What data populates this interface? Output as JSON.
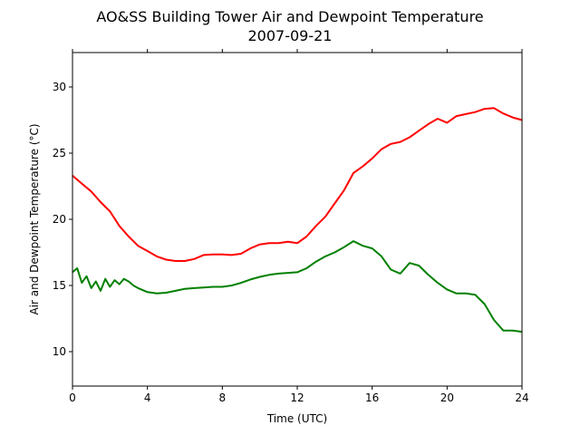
{
  "chart_data": {
    "type": "line",
    "title": "AO&SS Building Tower Air and Dewpoint Temperature",
    "subtitle": "2007-09-21",
    "xlabel": "Time (UTC)",
    "ylabel": "Air and Dewpoint Temperature (°C)",
    "xlim": [
      0,
      24
    ],
    "ylim": [
      7.4,
      32.6
    ],
    "xticks": [
      0,
      4,
      8,
      12,
      16,
      20,
      24
    ],
    "yticks": [
      10,
      15,
      20,
      25,
      30
    ],
    "grid": false,
    "series": [
      {
        "color": "#ff0000",
        "x": [
          0,
          0.5,
          1,
          1.5,
          2,
          2.5,
          3,
          3.5,
          4,
          4.5,
          5,
          5.5,
          6,
          6.5,
          7,
          7.5,
          8,
          8.5,
          9,
          9.5,
          10,
          10.5,
          11,
          11.5,
          12,
          12.5,
          13,
          13.5,
          14,
          14.5,
          15,
          15.5,
          16,
          16.5,
          17,
          17.5,
          18,
          18.5,
          19,
          19.5,
          20,
          20.5,
          21,
          21.5,
          22,
          22.5,
          23,
          23.5,
          24
        ],
        "values": [
          23.3,
          22.7,
          22.1,
          21.3,
          20.6,
          19.5,
          18.7,
          18.0,
          17.6,
          17.2,
          16.95,
          16.85,
          16.85,
          17.0,
          17.3,
          17.35,
          17.35,
          17.3,
          17.4,
          17.8,
          18.1,
          18.2,
          18.2,
          18.3,
          18.2,
          18.7,
          19.5,
          20.2,
          21.2,
          22.2,
          23.5,
          24.0,
          24.6,
          25.3,
          25.7,
          25.85,
          26.2,
          26.7,
          27.2,
          27.6,
          27.3,
          27.8,
          27.95,
          28.1,
          28.35,
          28.4,
          28.0,
          27.7,
          27.5
        ]
      },
      {
        "color": "#008000",
        "x": [
          0,
          0.25,
          0.5,
          0.75,
          1,
          1.25,
          1.5,
          1.75,
          2,
          2.25,
          2.5,
          2.75,
          3,
          3.25,
          3.5,
          4,
          4.5,
          5,
          5.5,
          6,
          6.5,
          7,
          7.5,
          8,
          8.5,
          9,
          9.5,
          10,
          10.5,
          11,
          11.5,
          12,
          12.5,
          13,
          13.5,
          14,
          14.5,
          15,
          15.5,
          16,
          16.5,
          17,
          17.5,
          18,
          18.5,
          19,
          19.5,
          20,
          20.5,
          21,
          21.5,
          22,
          22.5,
          23,
          23.5,
          24
        ],
        "values": [
          16.0,
          16.3,
          15.2,
          15.7,
          14.8,
          15.3,
          14.6,
          15.5,
          14.9,
          15.4,
          15.1,
          15.5,
          15.3,
          15.0,
          14.8,
          14.5,
          14.4,
          14.45,
          14.6,
          14.75,
          14.8,
          14.85,
          14.9,
          14.9,
          15.0,
          15.2,
          15.45,
          15.65,
          15.8,
          15.9,
          15.95,
          16.0,
          16.3,
          16.8,
          17.2,
          17.5,
          17.9,
          18.35,
          18.0,
          17.8,
          17.2,
          16.2,
          15.9,
          16.7,
          16.5,
          15.8,
          15.2,
          14.7,
          14.4,
          14.4,
          14.3,
          13.6,
          12.4,
          11.6,
          11.6,
          11.5
        ]
      }
    ]
  }
}
